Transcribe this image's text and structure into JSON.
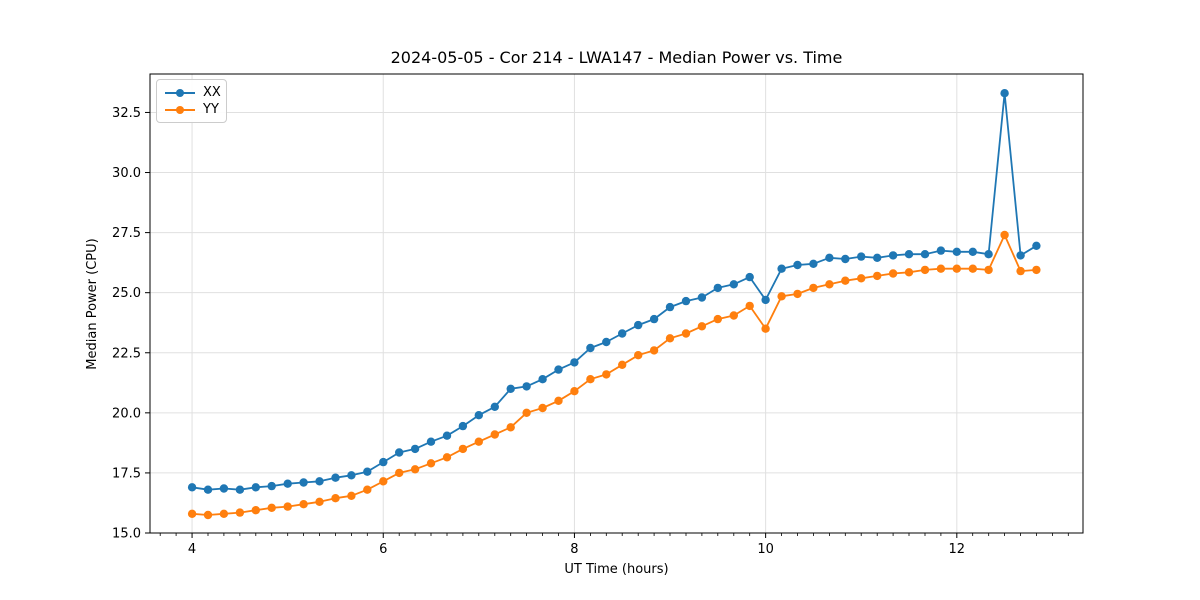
{
  "chart_data": {
    "type": "line",
    "title": "2024-05-05 - Cor 214 - LWA147 - Median Power vs. Time",
    "xlabel": "UT Time (hours)",
    "ylabel": "Median Power (CPU)",
    "x": [
      4.0,
      4.167,
      4.333,
      4.5,
      4.667,
      4.833,
      5.0,
      5.167,
      5.333,
      5.5,
      5.667,
      5.833,
      6.0,
      6.167,
      6.333,
      6.5,
      6.667,
      6.833,
      7.0,
      7.167,
      7.333,
      7.5,
      7.667,
      7.833,
      8.0,
      8.167,
      8.333,
      8.5,
      8.667,
      8.833,
      9.0,
      9.167,
      9.333,
      9.5,
      9.667,
      9.833,
      10.0,
      10.167,
      10.333,
      10.5,
      10.667,
      10.833,
      11.0,
      11.167,
      11.333,
      11.5,
      11.667,
      11.833,
      12.0,
      12.167,
      12.333,
      12.5,
      12.667,
      12.833
    ],
    "series": [
      {
        "name": "XX",
        "color": "#1f77b4",
        "values": [
          16.9,
          16.8,
          16.85,
          16.8,
          16.9,
          16.95,
          17.05,
          17.1,
          17.15,
          17.3,
          17.4,
          17.55,
          17.95,
          18.35,
          18.5,
          18.8,
          19.05,
          19.45,
          19.9,
          20.25,
          21.0,
          21.1,
          21.4,
          21.8,
          22.1,
          22.7,
          22.95,
          23.3,
          23.65,
          23.9,
          24.4,
          24.65,
          24.8,
          25.2,
          25.35,
          25.65,
          24.7,
          26.0,
          26.15,
          26.2,
          26.45,
          26.4,
          26.5,
          26.45,
          26.55,
          26.6,
          26.6,
          26.75,
          26.7,
          26.7,
          26.6,
          33.3,
          26.55,
          26.95
        ]
      },
      {
        "name": "YY",
        "color": "#ff7f0e",
        "values": [
          15.8,
          15.75,
          15.8,
          15.85,
          15.95,
          16.05,
          16.1,
          16.2,
          16.3,
          16.45,
          16.55,
          16.8,
          17.15,
          17.5,
          17.65,
          17.9,
          18.15,
          18.5,
          18.8,
          19.1,
          19.4,
          20.0,
          20.2,
          20.5,
          20.9,
          21.4,
          21.6,
          22.0,
          22.4,
          22.6,
          23.1,
          23.3,
          23.6,
          23.9,
          24.05,
          24.45,
          23.5,
          24.85,
          24.95,
          25.2,
          25.35,
          25.5,
          25.6,
          25.7,
          25.8,
          25.85,
          25.95,
          26.0,
          26.0,
          26.0,
          25.95,
          27.4,
          25.9,
          25.95
        ]
      }
    ],
    "xlim": [
      3.56,
      13.32
    ],
    "ylim": [
      15.0,
      34.1
    ],
    "x_ticks": [
      4,
      6,
      8,
      10,
      12
    ],
    "x_tick_labels": [
      "4",
      "6",
      "8",
      "10",
      "12"
    ],
    "x_minor_tick_step": 0.1667,
    "y_ticks": [
      15.0,
      17.5,
      20.0,
      22.5,
      25.0,
      27.5,
      30.0,
      32.5
    ],
    "y_tick_labels": [
      "15.0",
      "17.5",
      "20.0",
      "22.5",
      "25.0",
      "27.5",
      "30.0",
      "32.5"
    ],
    "grid": true,
    "grid_color": "#e0e0e0",
    "axis_color": "#000000",
    "background_color": "#ffffff",
    "legend_position": "upper left",
    "marker": "o",
    "notable_features": {
      "dip_hour": 10.0,
      "spike_hour": 12.5,
      "spike_value_xx": 33.3,
      "spike_value_yy": 27.4
    }
  }
}
